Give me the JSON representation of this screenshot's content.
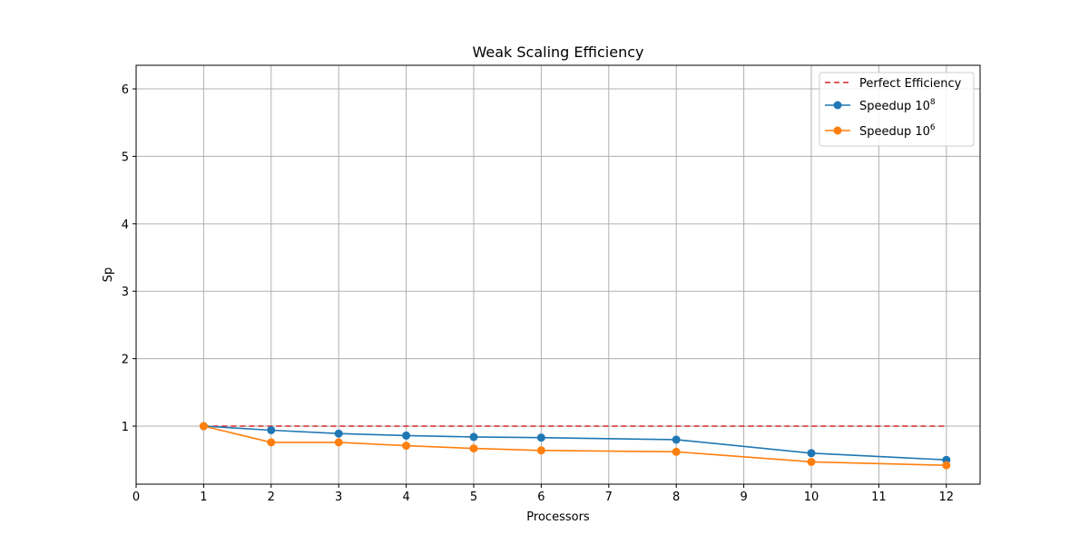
{
  "chart_data": {
    "type": "line",
    "title": "Weak Scaling Efficiency",
    "xlabel": "Processors",
    "ylabel": "Sp",
    "xlim": [
      0,
      12.5
    ],
    "ylim": [
      0.14,
      6.35
    ],
    "xticks": [
      0,
      1,
      2,
      3,
      4,
      5,
      6,
      7,
      8,
      9,
      10,
      11,
      12
    ],
    "yticks": [
      1,
      2,
      3,
      4,
      5,
      6
    ],
    "grid": true,
    "legend_position": "upper right",
    "series": [
      {
        "name": "Perfect Efficiency",
        "style": "dashed",
        "color": "#d62728",
        "x": [
          1,
          2,
          3,
          4,
          5,
          6,
          8,
          10,
          12
        ],
        "y": [
          1,
          1,
          1,
          1,
          1,
          1,
          1,
          1,
          1
        ]
      },
      {
        "name": "Speedup 10",
        "name_superscript": "8",
        "style": "solid-marker",
        "color": "#1f77b4",
        "x": [
          1,
          2,
          3,
          4,
          5,
          6,
          8,
          10,
          12
        ],
        "y": [
          1.0,
          0.94,
          0.89,
          0.86,
          0.84,
          0.83,
          0.8,
          0.6,
          0.5
        ]
      },
      {
        "name": "Speedup 10",
        "name_superscript": "6",
        "style": "solid-marker",
        "color": "#ff7f0e",
        "x": [
          1,
          2,
          3,
          4,
          5,
          6,
          8,
          10,
          12
        ],
        "y": [
          1.0,
          0.76,
          0.76,
          0.71,
          0.67,
          0.64,
          0.62,
          0.47,
          0.42
        ]
      }
    ]
  }
}
